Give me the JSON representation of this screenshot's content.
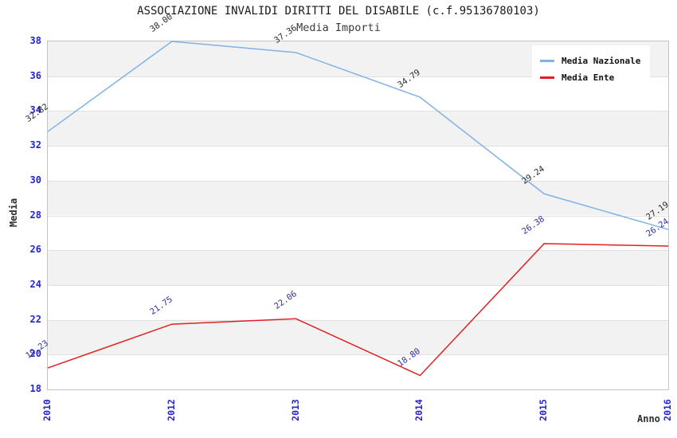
{
  "chart_data": {
    "type": "line",
    "title": "ASSOCIAZIONE INVALIDI DIRITTI DEL DISABILE (c.f.95136780103)",
    "subtitle": "Media Importi",
    "xlabel": "Anno",
    "ylabel": "Media",
    "categories": [
      "2010",
      "2012",
      "2013",
      "2014",
      "2015",
      "2016"
    ],
    "series": [
      {
        "name": "Media Nazionale",
        "color": "#7fb2e5",
        "label_color": "#2b2b2b",
        "values": [
          32.82,
          38.0,
          37.36,
          34.79,
          29.24,
          27.19
        ],
        "labels": [
          "32.82",
          "38.00",
          "37.36",
          "34.79",
          "29.24",
          "27.19"
        ]
      },
      {
        "name": "Media Ente",
        "color": "#e02020",
        "label_color": "#32329b",
        "values": [
          19.23,
          21.75,
          22.06,
          18.8,
          26.38,
          26.24
        ],
        "labels": [
          "19.23",
          "21.75",
          "22.06",
          "18.80",
          "26.38",
          "26.24"
        ]
      }
    ],
    "ylim": [
      18,
      38
    ],
    "yticks": [
      18,
      20,
      22,
      24,
      26,
      28,
      30,
      32,
      34,
      36,
      38
    ],
    "grid": "horizontal-bands",
    "legend_position": "top-right",
    "style": {
      "background": "#ffffff",
      "tick_label_color": "#2425cb",
      "axis_title_color": "#2f2f2f",
      "title_color": "#1a1a1a",
      "subtitle_color": "#3c3c3c",
      "band_color": "#f2f2f2",
      "grid_color": "#e0e0e0",
      "plot_border_color": "#c4c4c4",
      "legend_text_color": "#111111"
    }
  }
}
